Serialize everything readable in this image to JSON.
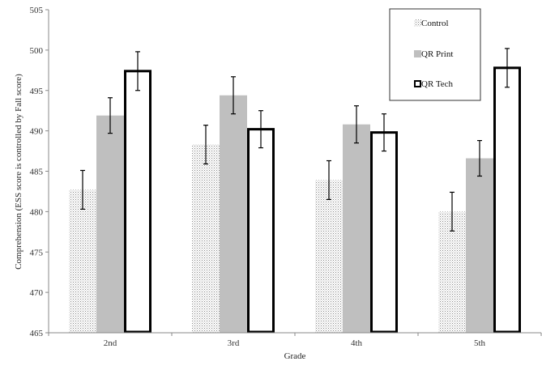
{
  "chart_data": {
    "type": "bar",
    "title": "",
    "xlabel": "Grade",
    "ylabel": "Comprehension (ESS score is controlled by Fall score)",
    "categories": [
      "2nd",
      "3rd",
      "4th",
      "5th"
    ],
    "ylim": [
      465,
      505
    ],
    "yticks": [
      465,
      470,
      475,
      480,
      485,
      490,
      495,
      500,
      505
    ],
    "grid": false,
    "legend_position": "top-right",
    "series": [
      {
        "name": "Control",
        "values": [
          482.7,
          488.3,
          483.9,
          480.0
        ],
        "errors": [
          2.4,
          2.4,
          2.4,
          2.4
        ],
        "fill": "dotted",
        "color": "#888888"
      },
      {
        "name": "QR Print",
        "values": [
          491.9,
          494.4,
          490.8,
          486.6
        ],
        "errors": [
          2.2,
          2.3,
          2.3,
          2.2
        ],
        "fill": "solid",
        "color": "#bfbfbf"
      },
      {
        "name": "QR Tech",
        "values": [
          497.4,
          490.2,
          489.8,
          497.8
        ],
        "errors": [
          2.4,
          2.3,
          2.3,
          2.4
        ],
        "fill": "outline",
        "color": "#000000"
      }
    ]
  }
}
